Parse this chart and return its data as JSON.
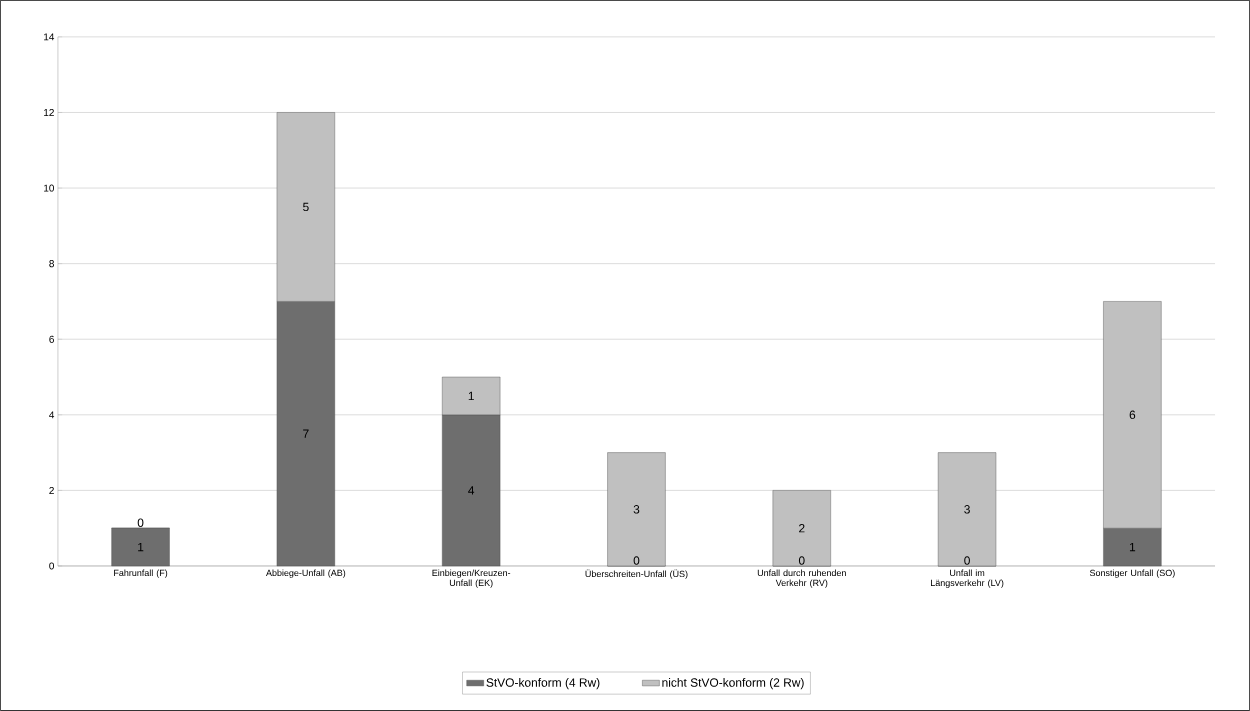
{
  "chart_data": {
    "type": "bar",
    "stacked": true,
    "grid": "y",
    "legend": "bottom",
    "categories": [
      "Fahrunfall (F)",
      "Abbiege-Unfall (AB)",
      "Einbiegen/Kreuzen-Unfall (EK)",
      "Überschreiten-Unfall (ÜS)",
      "Unfall durch ruhenden Verkehr (RV)",
      "Unfall im Längsverkehr (LV)",
      "Sonstiger Unfall (SO)"
    ],
    "series": [
      {
        "name": "StVO-konform (4 Rw)",
        "color": "#6e6e6e",
        "values": [
          1,
          7,
          4,
          0,
          0,
          0,
          1
        ],
        "value_labels": [
          "1",
          "7",
          "4",
          null,
          null,
          null,
          "1"
        ]
      },
      {
        "name": "nicht StVO-konform (2 Rw)",
        "color": "#c0c0c0",
        "values": [
          0,
          5,
          1,
          3,
          2,
          3,
          6
        ],
        "value_labels": [
          "0",
          "5",
          "1",
          "3",
          "2",
          "3",
          "6"
        ]
      }
    ],
    "annotations": [
      {
        "text": "0",
        "x": "Überschreiten-Unfall (ÜS)",
        "y": 0
      },
      {
        "text": "0",
        "x": "Unfall durch ruhenden Verkehr (RV)",
        "y": 0
      },
      {
        "text": "0",
        "x": "Unfall im Längsverkehr (LV)",
        "y": 0
      }
    ],
    "ylim": [
      0,
      14
    ],
    "yticks": [
      0,
      2,
      4,
      6,
      8,
      10,
      12,
      14
    ]
  }
}
